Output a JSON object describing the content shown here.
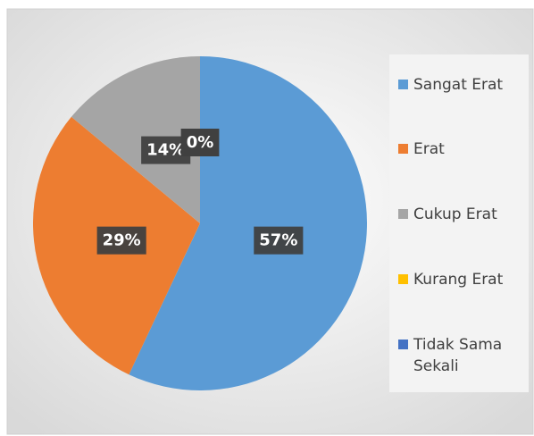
{
  "chart_data": {
    "type": "pie",
    "categories": [
      "Sangat Erat",
      "Erat",
      "Cukup Erat",
      "Kurang Erat",
      "Tidak Sama Sekali"
    ],
    "values": [
      57,
      29,
      14,
      0,
      0
    ],
    "value_labels": [
      "57%",
      "29%",
      "14%",
      "0%",
      "0%"
    ],
    "colors": [
      "#5b9bd5",
      "#ed7d31",
      "#a5a5a5",
      "#ffc000",
      "#4472c4"
    ],
    "legend": "right"
  }
}
